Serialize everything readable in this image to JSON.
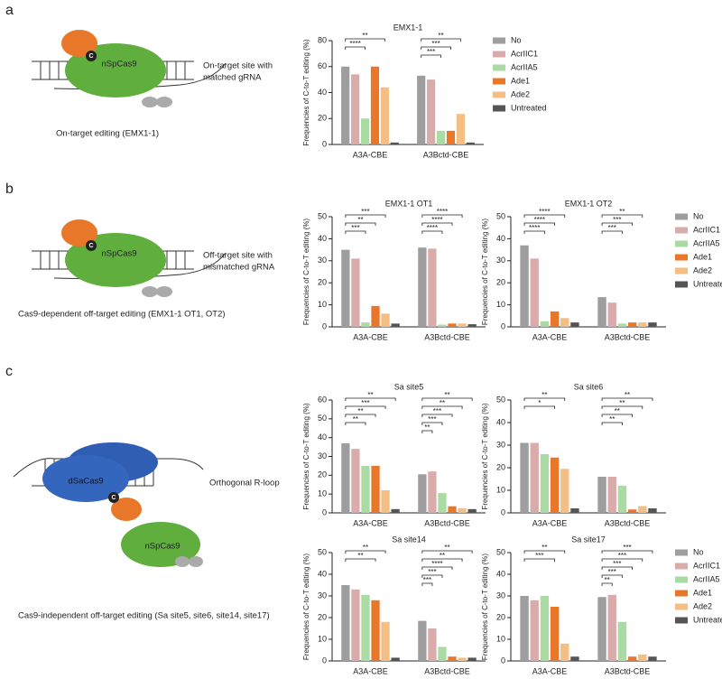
{
  "panel_labels": [
    "a",
    "b",
    "c"
  ],
  "diagrams": [
    {
      "proteins": [
        "nSpCas9"
      ],
      "note": [
        "On-target site with",
        "matched gRNA"
      ],
      "caption": "On-target editing (EMX1-1)",
      "marker": "C"
    },
    {
      "proteins": [
        "nSpCas9"
      ],
      "note": [
        "Off-target site with",
        "mismatched gRNA"
      ],
      "caption": "Cas9-dependent off-target editing (EMX1-1 OT1, OT2)",
      "marker": "C"
    },
    {
      "proteins": [
        "dSaCas9",
        "nSpCas9"
      ],
      "note": [
        "Orthogonal R-loop"
      ],
      "caption": "Cas9-independent off-target editing (Sa site5, site6, site14, site17)",
      "marker": "C"
    }
  ],
  "chart_data": [
    {
      "type": "bar",
      "title": "EMX1-1",
      "ylabel": "Frequencies of C-to-T editing (%)",
      "categories": [
        "A3A-CBE",
        "A3Bctd-CBE"
      ],
      "series": [
        {
          "name": "No",
          "color": "#9e9e9e",
          "values": [
            60,
            53
          ]
        },
        {
          "name": "AcrIIC1",
          "color": "#d9abab",
          "values": [
            54,
            50
          ]
        },
        {
          "name": "AcrIIA5",
          "color": "#aadba2",
          "values": [
            20,
            10.5
          ]
        },
        {
          "name": "Ade1",
          "color": "#e8772a",
          "values": [
            60,
            10.5
          ]
        },
        {
          "name": "Ade2",
          "color": "#f4be84",
          "values": [
            44,
            23.5
          ]
        },
        {
          "name": "Untreated",
          "color": "#555555",
          "values": [
            1.5,
            1.5
          ]
        }
      ],
      "ylim": [
        0,
        80
      ],
      "yticks": [
        0,
        20,
        40,
        60,
        80
      ],
      "legend": "right",
      "annotations": [
        {
          "text": "****",
          "category": 0,
          "series": 2
        },
        {
          "text": "**",
          "category": 0,
          "series": 4
        },
        {
          "text": "***",
          "category": 1,
          "series": 2
        },
        {
          "text": "***",
          "category": 1,
          "series": 3
        },
        {
          "text": "**",
          "category": 1,
          "series": 4
        }
      ]
    },
    {
      "type": "bar",
      "title": "EMX1-1 OT1",
      "ylabel": "Frequencies of C-to-T editing (%)",
      "categories": [
        "A3A-CBE",
        "A3Bctd-CBE"
      ],
      "series": [
        {
          "name": "No",
          "color": "#9e9e9e",
          "values": [
            35,
            36
          ]
        },
        {
          "name": "AcrIIC1",
          "color": "#d9abab",
          "values": [
            31,
            35.5
          ]
        },
        {
          "name": "AcrIIA5",
          "color": "#aadba2",
          "values": [
            2,
            1
          ]
        },
        {
          "name": "Ade1",
          "color": "#e8772a",
          "values": [
            9.5,
            1.5
          ]
        },
        {
          "name": "Ade2",
          "color": "#f4be84",
          "values": [
            6,
            1.5
          ]
        },
        {
          "name": "Untreated",
          "color": "#555555",
          "values": [
            1.5,
            1.2
          ]
        }
      ],
      "ylim": [
        0,
        50
      ],
      "yticks": [
        0,
        10,
        20,
        30,
        40,
        50
      ],
      "annotations": [
        {
          "text": "***",
          "category": 0,
          "series": 2
        },
        {
          "text": "**",
          "category": 0,
          "series": 3
        },
        {
          "text": "***",
          "category": 0,
          "series": 4
        },
        {
          "text": "****",
          "category": 1,
          "series": 2
        },
        {
          "text": "****",
          "category": 1,
          "series": 3
        },
        {
          "text": "****",
          "category": 1,
          "series": 4
        }
      ]
    },
    {
      "type": "bar",
      "title": "EMX1-1 OT2",
      "ylabel": "Frequencies of C-to-T editing (%)",
      "categories": [
        "A3A-CBE",
        "A3Bctd-CBE"
      ],
      "series": [
        {
          "name": "No",
          "color": "#9e9e9e",
          "values": [
            37,
            13.5
          ]
        },
        {
          "name": "AcrIIC1",
          "color": "#d9abab",
          "values": [
            31,
            11
          ]
        },
        {
          "name": "AcrIIA5",
          "color": "#aadba2",
          "values": [
            2.5,
            1.5
          ]
        },
        {
          "name": "Ade1",
          "color": "#e8772a",
          "values": [
            7,
            2
          ]
        },
        {
          "name": "Ade2",
          "color": "#f4be84",
          "values": [
            4,
            2
          ]
        },
        {
          "name": "Untreated",
          "color": "#555555",
          "values": [
            2,
            2
          ]
        }
      ],
      "ylim": [
        0,
        50
      ],
      "yticks": [
        0,
        10,
        20,
        30,
        40,
        50
      ],
      "legend": "right",
      "annotations": [
        {
          "text": "****",
          "category": 0,
          "series": 2
        },
        {
          "text": "****",
          "category": 0,
          "series": 3
        },
        {
          "text": "****",
          "category": 0,
          "series": 4
        },
        {
          "text": "***",
          "category": 1,
          "series": 2
        },
        {
          "text": "***",
          "category": 1,
          "series": 3
        },
        {
          "text": "**",
          "category": 1,
          "series": 4
        }
      ]
    },
    {
      "type": "bar",
      "title": "Sa site5",
      "ylabel": "Frequencies of C-to-T editing (%)",
      "categories": [
        "A3A-CBE",
        "A3Bctd-CBE"
      ],
      "series": [
        {
          "name": "No",
          "color": "#9e9e9e",
          "values": [
            37,
            20.5
          ]
        },
        {
          "name": "AcrIIC1",
          "color": "#d9abab",
          "values": [
            34,
            22
          ]
        },
        {
          "name": "AcrIIA5",
          "color": "#aadba2",
          "values": [
            25,
            10.5
          ]
        },
        {
          "name": "Ade1",
          "color": "#e8772a",
          "values": [
            25,
            3.5
          ]
        },
        {
          "name": "Ade2",
          "color": "#f4be84",
          "values": [
            12,
            2.5
          ]
        },
        {
          "name": "Untreated",
          "color": "#555555",
          "values": [
            2,
            2
          ]
        }
      ],
      "ylim": [
        0,
        60
      ],
      "yticks": [
        0,
        10,
        20,
        30,
        40,
        50,
        60
      ],
      "annotations": [
        {
          "text": "**",
          "category": 0,
          "series": 2
        },
        {
          "text": "**",
          "category": 0,
          "series": 3
        },
        {
          "text": "***",
          "category": 0,
          "series": 4
        },
        {
          "text": "**",
          "category": 0,
          "series": 5
        },
        {
          "text": "**",
          "category": 1,
          "series": 1
        },
        {
          "text": "***",
          "category": 1,
          "series": 2
        },
        {
          "text": "***",
          "category": 1,
          "series": 3
        },
        {
          "text": "**",
          "category": 1,
          "series": 4
        },
        {
          "text": "**",
          "category": 1,
          "series": 5
        }
      ]
    },
    {
      "type": "bar",
      "title": "Sa site6",
      "ylabel": "Frequencies of C-to-T editing (%)",
      "categories": [
        "A3A-CBE",
        "A3Bctd-CBE"
      ],
      "series": [
        {
          "name": "No",
          "color": "#9e9e9e",
          "values": [
            31,
            16
          ]
        },
        {
          "name": "AcrIIC1",
          "color": "#d9abab",
          "values": [
            31,
            16
          ]
        },
        {
          "name": "AcrIIA5",
          "color": "#aadba2",
          "values": [
            26,
            12
          ]
        },
        {
          "name": "Ade1",
          "color": "#e8772a",
          "values": [
            24.5,
            1.5
          ]
        },
        {
          "name": "Ade2",
          "color": "#f4be84",
          "values": [
            19.5,
            3
          ]
        },
        {
          "name": "Untreated",
          "color": "#555555",
          "values": [
            2,
            2
          ]
        }
      ],
      "ylim": [
        0,
        50
      ],
      "yticks": [
        0,
        10,
        20,
        30,
        40,
        50
      ],
      "annotations": [
        {
          "text": "*",
          "category": 0,
          "series": 3
        },
        {
          "text": "**",
          "category": 0,
          "series": 4
        },
        {
          "text": "**",
          "category": 1,
          "series": 2
        },
        {
          "text": "**",
          "category": 1,
          "series": 3
        },
        {
          "text": "**",
          "category": 1,
          "series": 4
        },
        {
          "text": "**",
          "category": 1,
          "series": 5
        }
      ]
    },
    {
      "type": "bar",
      "title": "Sa site14",
      "ylabel": "Frequencies of C-to-T editing (%)",
      "categories": [
        "A3A-CBE",
        "A3Bctd-CBE"
      ],
      "series": [
        {
          "name": "No",
          "color": "#9e9e9e",
          "values": [
            35,
            18.5
          ]
        },
        {
          "name": "AcrIIC1",
          "color": "#d9abab",
          "values": [
            33,
            15
          ]
        },
        {
          "name": "AcrIIA5",
          "color": "#aadba2",
          "values": [
            30.5,
            6.5
          ]
        },
        {
          "name": "Ade1",
          "color": "#e8772a",
          "values": [
            28,
            2
          ]
        },
        {
          "name": "Ade2",
          "color": "#f4be84",
          "values": [
            18,
            1.5
          ]
        },
        {
          "name": "Untreated",
          "color": "#555555",
          "values": [
            1.5,
            1.5
          ]
        }
      ],
      "ylim": [
        0,
        50
      ],
      "yticks": [
        0,
        10,
        20,
        30,
        40,
        50
      ],
      "annotations": [
        {
          "text": "**",
          "category": 0,
          "series": 3
        },
        {
          "text": "**",
          "category": 0,
          "series": 4
        },
        {
          "text": "***",
          "category": 1,
          "series": 1
        },
        {
          "text": "***",
          "category": 1,
          "series": 2
        },
        {
          "text": "****",
          "category": 1,
          "series": 3
        },
        {
          "text": "**",
          "category": 1,
          "series": 4
        },
        {
          "text": "**",
          "category": 1,
          "series": 5
        }
      ]
    },
    {
      "type": "bar",
      "title": "Sa site17",
      "ylabel": "Frequencies of C-to-T editing (%)",
      "categories": [
        "A3A-CBE",
        "A3Bctd-CBE"
      ],
      "series": [
        {
          "name": "No",
          "color": "#9e9e9e",
          "values": [
            30,
            29.5
          ]
        },
        {
          "name": "AcrIIC1",
          "color": "#d9abab",
          "values": [
            28,
            30.5
          ]
        },
        {
          "name": "AcrIIA5",
          "color": "#aadba2",
          "values": [
            30,
            18
          ]
        },
        {
          "name": "Ade1",
          "color": "#e8772a",
          "values": [
            25,
            2
          ]
        },
        {
          "name": "Ade2",
          "color": "#f4be84",
          "values": [
            8,
            3
          ]
        },
        {
          "name": "Untreated",
          "color": "#555555",
          "values": [
            2,
            2
          ]
        }
      ],
      "ylim": [
        0,
        50
      ],
      "yticks": [
        0,
        10,
        20,
        30,
        40,
        50
      ],
      "legend": "right",
      "annotations": [
        {
          "text": "***",
          "category": 0,
          "series": 3
        },
        {
          "text": "**",
          "category": 0,
          "series": 4
        },
        {
          "text": "**",
          "category": 1,
          "series": 1
        },
        {
          "text": "***",
          "category": 1,
          "series": 2
        },
        {
          "text": "***",
          "category": 1,
          "series": 3
        },
        {
          "text": "***",
          "category": 1,
          "series": 4
        },
        {
          "text": "***",
          "category": 1,
          "series": 5
        }
      ]
    }
  ]
}
